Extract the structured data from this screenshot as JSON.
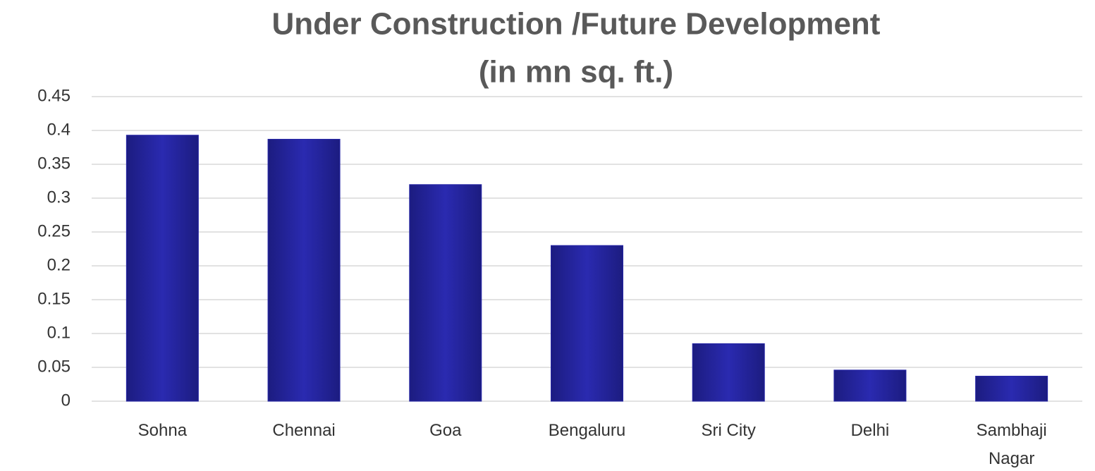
{
  "chart_data": {
    "type": "bar",
    "title": "Under Construction /Future Development",
    "subtitle": "(in mn sq. ft.)",
    "categories": [
      "Sohna",
      "Chennai",
      "Goa",
      "Bengaluru",
      "Sri City",
      "Delhi",
      "Sambhaji Nagar"
    ],
    "values": [
      0.393,
      0.387,
      0.32,
      0.23,
      0.085,
      0.046,
      0.037
    ],
    "color": "#2626a6",
    "ylim": [
      0,
      0.45
    ],
    "yticks": [
      0,
      0.05,
      0.1,
      0.15,
      0.2,
      0.25,
      0.3,
      0.35,
      0.4,
      0.45
    ],
    "grid": true
  }
}
